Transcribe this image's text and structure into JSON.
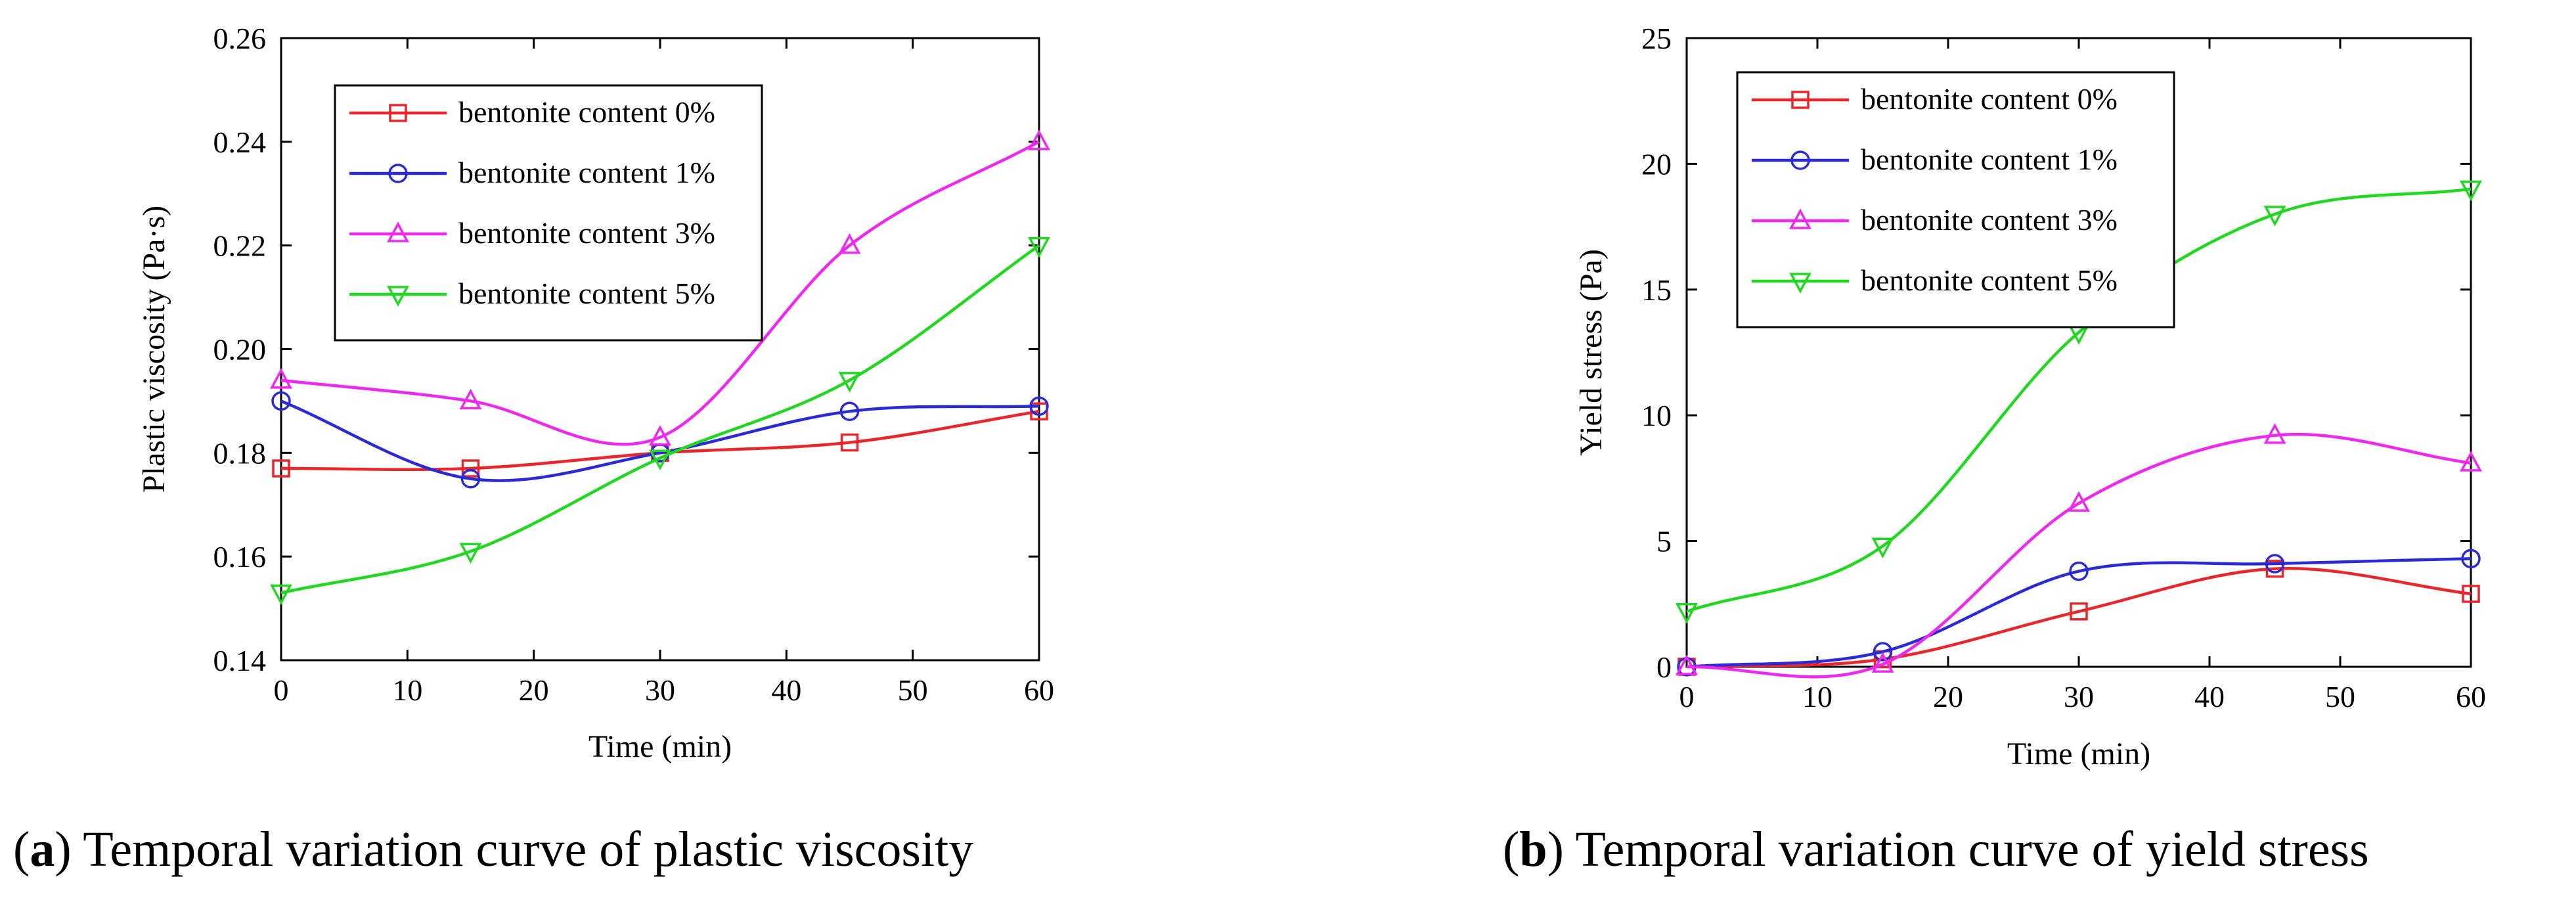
{
  "chart_data": [
    {
      "type": "line",
      "panel": "a",
      "caption_letter": "a",
      "caption": "Temporal variation curve of plastic viscosity",
      "xlabel": "Time (min)",
      "ylabel": "Plastic viscosity (Pa·s)",
      "xlim": [
        0,
        60
      ],
      "ylim": [
        0.14,
        0.26
      ],
      "xticks": [
        "0",
        "10",
        "20",
        "30",
        "40",
        "50",
        "60"
      ],
      "yticks": [
        "0.14",
        "0.16",
        "0.18",
        "0.20",
        "0.22",
        "0.24",
        "0.26"
      ],
      "x": [
        0,
        15,
        30,
        45,
        60
      ],
      "legend_position": "top-left",
      "series": [
        {
          "name": "bentonite content 0%",
          "color": "#e8262b",
          "marker": "square",
          "values": [
            0.177,
            0.177,
            0.18,
            0.182,
            0.188
          ]
        },
        {
          "name": "bentonite content 1%",
          "color": "#2b2bd6",
          "marker": "circle",
          "values": [
            0.19,
            0.175,
            0.18,
            0.188,
            0.189
          ]
        },
        {
          "name": "bentonite content 3%",
          "color": "#ee28ee",
          "marker": "triangle-up",
          "values": [
            0.194,
            0.19,
            0.183,
            0.22,
            0.24
          ]
        },
        {
          "name": "bentonite content 5%",
          "color": "#1fd81f",
          "marker": "triangle-down",
          "values": [
            0.153,
            0.161,
            0.179,
            0.194,
            0.22
          ]
        }
      ]
    },
    {
      "type": "line",
      "panel": "b",
      "caption_letter": "b",
      "caption": "Temporal variation curve of yield stress",
      "xlabel": "Time (min)",
      "ylabel": "Yield stress (Pa)",
      "xlim": [
        0,
        60
      ],
      "ylim": [
        0,
        25
      ],
      "xticks": [
        "0",
        "10",
        "20",
        "30",
        "40",
        "50",
        "60"
      ],
      "yticks": [
        "0",
        "5",
        "10",
        "15",
        "20",
        "25"
      ],
      "x": [
        0,
        15,
        30,
        45,
        60
      ],
      "legend_position": "top-left",
      "series": [
        {
          "name": "bentonite content 0%",
          "color": "#e8262b",
          "marker": "square",
          "values": [
            0,
            0.3,
            2.2,
            3.9,
            2.9
          ]
        },
        {
          "name": "bentonite content 1%",
          "color": "#2b2bd6",
          "marker": "circle",
          "values": [
            0,
            0.6,
            3.8,
            4.1,
            4.3
          ]
        },
        {
          "name": "bentonite content 3%",
          "color": "#ee28ee",
          "marker": "triangle-up",
          "values": [
            0,
            0.1,
            6.5,
            9.2,
            8.1
          ]
        },
        {
          "name": "bentonite content 5%",
          "color": "#1fd81f",
          "marker": "triangle-down",
          "values": [
            2.2,
            4.8,
            13.3,
            18.0,
            19.0
          ]
        }
      ]
    }
  ]
}
